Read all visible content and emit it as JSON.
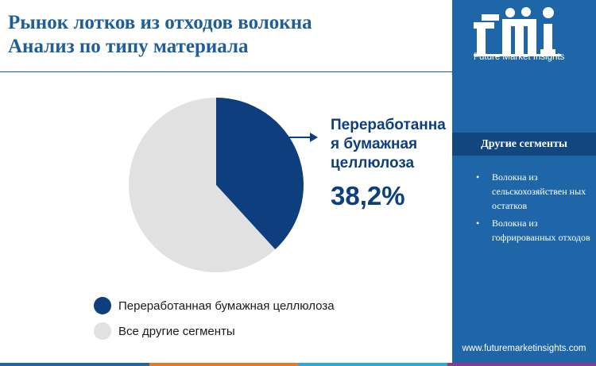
{
  "title": {
    "line1": "Рынок лотков из отходов волокна",
    "line2": "Анализ по типу материала"
  },
  "chart_data": {
    "type": "pie",
    "slices": [
      {
        "label": "Переработанная бумажная целлюлоза",
        "value": 38.2,
        "color": "#0d3f7f"
      },
      {
        "label": "Все другие сегменты",
        "value": 61.8,
        "color": "#e1e1e1"
      }
    ]
  },
  "callout": {
    "label": "Переработанна я бумажная целлюлоза",
    "value": "38,2%"
  },
  "legend": {
    "items": [
      {
        "label": "Переработанная бумажная целлюлоза",
        "color": "#0d3f7f"
      },
      {
        "label": "Все другие сегменты",
        "color": "#e1e1e1"
      }
    ]
  },
  "sidebar": {
    "logo_text": "Future Market Insights",
    "other_header": "Другие сегменты",
    "other_items": [
      "Волокна из сельскохозяйствен ных остатков",
      "Волокна из гофрированных отходов"
    ],
    "website": "www.futuremarketinsights.com"
  },
  "colors": {
    "title": "#1f5e96",
    "accent": "#0d3f7f",
    "sidebar_bg": "#1f66a8",
    "bottom_bar": [
      "#1f66a8",
      "#e8792b",
      "#2ea8d8",
      "#8c3a8c"
    ]
  }
}
